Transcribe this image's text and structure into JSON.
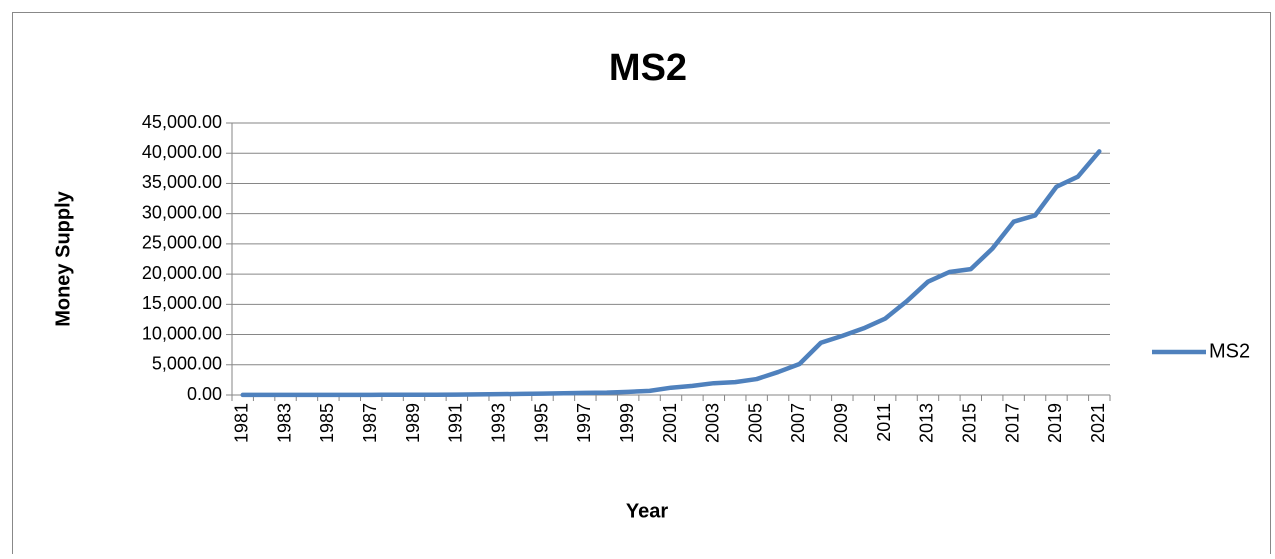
{
  "chart_data": {
    "type": "line",
    "title": "MS2",
    "x_label": "Year",
    "y_label": "Money Supply",
    "categories": [
      "1981",
      null,
      "1983",
      null,
      "1985",
      null,
      "1987",
      null,
      "1989",
      null,
      "1991",
      null,
      "1993",
      null,
      "1995",
      null,
      "1997",
      null,
      "1999",
      null,
      "2001",
      null,
      "2003",
      null,
      "2005",
      null,
      "2007",
      null,
      "2009",
      null,
      "2011",
      null,
      "2013",
      null,
      "2015",
      null,
      "2017",
      null,
      "2019",
      null,
      "2021"
    ],
    "series": [
      {
        "name": "MS2",
        "color": "#4f81bd",
        "values": [
          14.5,
          15.8,
          17.7,
          19.0,
          21.7,
          22.6,
          27.5,
          36.5,
          37.7,
          45.9,
          63.4,
          94.6,
          137.8,
          178.1,
          230.3,
          280.9,
          347.0,
          388.2,
          523.2,
          687.6,
          1208.4,
          1506.0,
          1952.0,
          2132.0,
          2637.0,
          3797.0,
          5127.0,
          8643.0,
          9780.0,
          11035.0,
          12637.0,
          15484.0,
          18744.0,
          20349.0,
          20830.0,
          24188.0,
          28668.0,
          29698.0,
          34450.0,
          36114.0,
          40300.0
        ]
      }
    ],
    "ylim": [
      0,
      45000
    ],
    "yticks": [
      {
        "value": 0,
        "label": "0.00"
      },
      {
        "value": 5000,
        "label": "5,000.00"
      },
      {
        "value": 10000,
        "label": "10,000.00"
      },
      {
        "value": 15000,
        "label": "15,000.00"
      },
      {
        "value": 20000,
        "label": "20,000.00"
      },
      {
        "value": 25000,
        "label": "25,000.00"
      },
      {
        "value": 30000,
        "label": "30,000.00"
      },
      {
        "value": 35000,
        "label": "35,000.00"
      },
      {
        "value": 40000,
        "label": "40,000.00"
      },
      {
        "value": 45000,
        "label": "45,000.00"
      }
    ],
    "grid": true,
    "legend": "right"
  }
}
